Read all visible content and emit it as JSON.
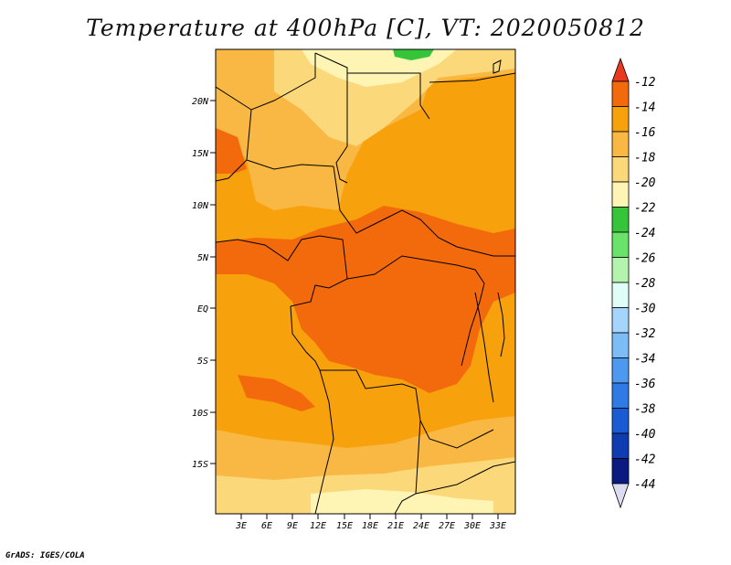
{
  "title": "Temperature at 400hPa [C], VT: 2020050812",
  "credit": "GrADS: IGES/COLA",
  "map": {
    "lat_labels": [
      "20N",
      "15N",
      "10N",
      "5N",
      "EQ",
      "5S",
      "10S",
      "15S"
    ],
    "lon_labels": [
      "3E",
      "6E",
      "9E",
      "12E",
      "15E",
      "18E",
      "21E",
      "24E",
      "27E",
      "30E",
      "33E"
    ],
    "lat_range": [
      -20,
      25
    ],
    "lon_range": [
      0,
      35
    ]
  },
  "colorbar": {
    "labels": [
      "-12",
      "-14",
      "-16",
      "-18",
      "-20",
      "-22",
      "-24",
      "-26",
      "-28",
      "-30",
      "-32",
      "-34",
      "-36",
      "-38",
      "-40",
      "-42",
      "-44"
    ],
    "colors": [
      "#e8391e",
      "#f36a0c",
      "#f7a10c",
      "#f9b843",
      "#fbd879",
      "#fef5b5",
      "#36c53a",
      "#6ae36b",
      "#b4f3ae",
      "#e1fdf8",
      "#a5d5fb",
      "#7cbdf7",
      "#4d99ef",
      "#2f7ae4",
      "#1a5ad3",
      "#0f3cb0",
      "#0b1a80",
      "#dcdcf0"
    ]
  }
}
